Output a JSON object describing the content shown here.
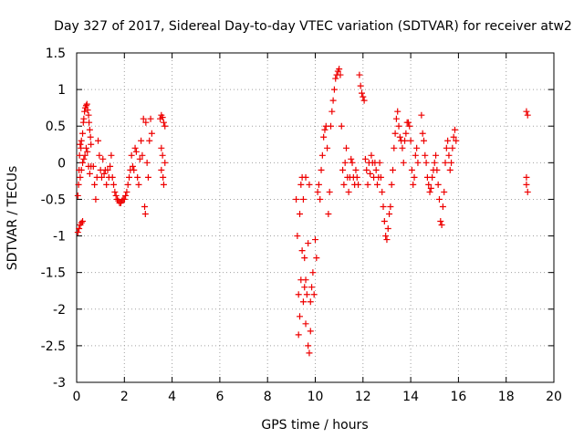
{
  "chart_data": {
    "type": "scatter",
    "title": "Day 327 of 2017, Sidereal Day-to-day VTEC variation (SDTVAR) for receiver atw2",
    "xlabel": "GPS time / hours",
    "ylabel": "SDTVAR / TECUs",
    "xlim": [
      0,
      20
    ],
    "ylim": [
      -3,
      1.5
    ],
    "grid": true,
    "marker": "+",
    "marker_color": "#ee0000",
    "xticks": [
      0,
      2,
      4,
      6,
      8,
      10,
      12,
      14,
      16,
      18,
      20
    ],
    "xtick_labels": [
      "0",
      "2",
      "4",
      "6",
      "8",
      "10",
      "12",
      "14",
      "16",
      "18",
      "20"
    ],
    "yticks": [
      -3,
      -2.5,
      -2,
      -1.5,
      -1,
      -0.5,
      0,
      0.5,
      1,
      1.5
    ],
    "ytick_labels": [
      "-3",
      "-2.5",
      "-2",
      "-1.5",
      "-1",
      "-0.5",
      "0",
      "0.5",
      "1",
      "1.5"
    ],
    "series": [
      {
        "name": "SDTVAR",
        "points": [
          [
            0.05,
            -0.95
          ],
          [
            0.1,
            -0.9
          ],
          [
            0.15,
            -0.85
          ],
          [
            0.2,
            -0.82
          ],
          [
            0.25,
            -0.8
          ],
          [
            0.05,
            -0.45
          ],
          [
            0.08,
            -0.3
          ],
          [
            0.1,
            -0.1
          ],
          [
            0.12,
            0.1
          ],
          [
            0.15,
            0.25
          ],
          [
            0.18,
            0.2
          ],
          [
            0.2,
            0.3
          ],
          [
            0.25,
            0.4
          ],
          [
            0.28,
            0.55
          ],
          [
            0.3,
            0.6
          ],
          [
            0.33,
            0.7
          ],
          [
            0.36,
            0.75
          ],
          [
            0.4,
            0.78
          ],
          [
            0.43,
            0.8
          ],
          [
            0.46,
            0.72
          ],
          [
            0.5,
            0.65
          ],
          [
            0.52,
            0.55
          ],
          [
            0.55,
            0.45
          ],
          [
            0.58,
            0.35
          ],
          [
            0.6,
            0.25
          ],
          [
            0.15,
            -0.2
          ],
          [
            0.2,
            -0.1
          ],
          [
            0.25,
            0.0
          ],
          [
            0.3,
            0.05
          ],
          [
            0.35,
            0.1
          ],
          [
            0.4,
            0.2
          ],
          [
            0.45,
            0.15
          ],
          [
            0.5,
            -0.05
          ],
          [
            0.55,
            -0.15
          ],
          [
            0.6,
            -0.05
          ],
          [
            0.7,
            -0.05
          ],
          [
            0.75,
            -0.3
          ],
          [
            0.8,
            -0.5
          ],
          [
            0.85,
            -0.2
          ],
          [
            0.9,
            0.3
          ],
          [
            0.95,
            0.1
          ],
          [
            1.0,
            -0.1
          ],
          [
            1.05,
            -0.2
          ],
          [
            1.1,
            0.05
          ],
          [
            1.15,
            -0.15
          ],
          [
            1.2,
            -0.1
          ],
          [
            1.25,
            -0.3
          ],
          [
            1.3,
            -0.1
          ],
          [
            1.35,
            -0.2
          ],
          [
            1.4,
            -0.05
          ],
          [
            1.45,
            0.1
          ],
          [
            1.5,
            -0.2
          ],
          [
            1.55,
            -0.3
          ],
          [
            1.6,
            -0.4
          ],
          [
            1.65,
            -0.45
          ],
          [
            1.7,
            -0.5
          ],
          [
            1.75,
            -0.52
          ],
          [
            1.8,
            -0.55
          ],
          [
            1.85,
            -0.55
          ],
          [
            1.9,
            -0.52
          ],
          [
            1.95,
            -0.5
          ],
          [
            2.0,
            -0.5
          ],
          [
            2.05,
            -0.45
          ],
          [
            2.1,
            -0.4
          ],
          [
            2.15,
            -0.3
          ],
          [
            2.2,
            -0.2
          ],
          [
            2.25,
            -0.1
          ],
          [
            2.3,
            0.1
          ],
          [
            2.35,
            -0.05
          ],
          [
            2.4,
            -0.1
          ],
          [
            2.45,
            0.2
          ],
          [
            2.5,
            0.15
          ],
          [
            2.55,
            -0.2
          ],
          [
            2.6,
            -0.3
          ],
          [
            2.65,
            0.05
          ],
          [
            2.7,
            0.3
          ],
          [
            2.75,
            0.1
          ],
          [
            2.8,
            0.6
          ],
          [
            2.85,
            -0.6
          ],
          [
            2.88,
            -0.7
          ],
          [
            2.9,
            0.55
          ],
          [
            2.95,
            0.0
          ],
          [
            3.0,
            -0.2
          ],
          [
            3.05,
            0.3
          ],
          [
            3.1,
            0.6
          ],
          [
            3.15,
            0.4
          ],
          [
            3.5,
            0.6
          ],
          [
            3.55,
            0.65
          ],
          [
            3.6,
            0.62
          ],
          [
            3.65,
            0.55
          ],
          [
            3.7,
            0.5
          ],
          [
            3.55,
            -0.1
          ],
          [
            3.6,
            0.1
          ],
          [
            3.65,
            -0.3
          ],
          [
            3.7,
            0.0
          ],
          [
            3.55,
            0.2
          ],
          [
            3.62,
            -0.2
          ],
          [
            9.2,
            -0.5
          ],
          [
            9.25,
            -1.0
          ],
          [
            9.3,
            -1.8
          ],
          [
            9.35,
            -2.1
          ],
          [
            9.4,
            -1.6
          ],
          [
            9.45,
            -1.2
          ],
          [
            9.5,
            -1.9
          ],
          [
            9.55,
            -1.7
          ],
          [
            9.6,
            -2.2
          ],
          [
            9.65,
            -1.8
          ],
          [
            9.7,
            -2.5
          ],
          [
            9.75,
            -2.6
          ],
          [
            9.8,
            -2.3
          ],
          [
            9.85,
            -1.7
          ],
          [
            9.9,
            -1.5
          ],
          [
            9.95,
            -1.8
          ],
          [
            9.3,
            -2.35
          ],
          [
            9.35,
            -0.7
          ],
          [
            9.4,
            -0.3
          ],
          [
            9.45,
            -0.2
          ],
          [
            9.5,
            -0.5
          ],
          [
            9.55,
            -1.3
          ],
          [
            9.6,
            -1.6
          ],
          [
            9.7,
            -1.1
          ],
          [
            9.8,
            -1.9
          ],
          [
            9.6,
            -0.2
          ],
          [
            9.75,
            -0.3
          ],
          [
            10.0,
            -1.05
          ],
          [
            10.05,
            -1.3
          ],
          [
            10.1,
            -0.4
          ],
          [
            10.15,
            -0.3
          ],
          [
            10.2,
            -0.5
          ],
          [
            10.25,
            -0.1
          ],
          [
            10.3,
            0.1
          ],
          [
            10.35,
            0.35
          ],
          [
            10.4,
            0.45
          ],
          [
            10.45,
            0.5
          ],
          [
            10.5,
            0.2
          ],
          [
            10.55,
            -0.7
          ],
          [
            10.6,
            -0.4
          ],
          [
            10.65,
            0.5
          ],
          [
            10.7,
            0.7
          ],
          [
            10.75,
            0.85
          ],
          [
            10.8,
            1.0
          ],
          [
            10.85,
            1.15
          ],
          [
            10.9,
            1.2
          ],
          [
            10.95,
            1.25
          ],
          [
            11.0,
            1.28
          ],
          [
            11.05,
            1.2
          ],
          [
            11.1,
            0.5
          ],
          [
            11.15,
            -0.1
          ],
          [
            11.2,
            -0.3
          ],
          [
            11.25,
            0.0
          ],
          [
            11.3,
            0.2
          ],
          [
            11.35,
            -0.2
          ],
          [
            11.4,
            -0.4
          ],
          [
            11.45,
            -0.2
          ],
          [
            11.5,
            0.05
          ],
          [
            11.55,
            0.0
          ],
          [
            11.6,
            -0.2
          ],
          [
            11.65,
            -0.3
          ],
          [
            11.7,
            -0.1
          ],
          [
            11.75,
            -0.2
          ],
          [
            11.8,
            -0.3
          ],
          [
            11.85,
            1.2
          ],
          [
            11.9,
            1.05
          ],
          [
            11.95,
            0.95
          ],
          [
            12.0,
            0.9
          ],
          [
            12.05,
            0.85
          ],
          [
            12.1,
            0.05
          ],
          [
            12.15,
            -0.1
          ],
          [
            12.2,
            -0.3
          ],
          [
            12.25,
            0.0
          ],
          [
            12.3,
            -0.15
          ],
          [
            12.35,
            0.1
          ],
          [
            12.4,
            0.0
          ],
          [
            12.45,
            -0.2
          ],
          [
            12.5,
            0.0
          ],
          [
            12.55,
            -0.1
          ],
          [
            12.6,
            -0.3
          ],
          [
            12.65,
            -0.2
          ],
          [
            12.7,
            0.0
          ],
          [
            12.75,
            -0.2
          ],
          [
            12.8,
            -0.4
          ],
          [
            12.85,
            -0.6
          ],
          [
            12.9,
            -0.8
          ],
          [
            12.95,
            -1.0
          ],
          [
            13.0,
            -1.05
          ],
          [
            13.05,
            -0.9
          ],
          [
            13.1,
            -0.7
          ],
          [
            13.15,
            -0.6
          ],
          [
            13.2,
            -0.3
          ],
          [
            13.25,
            -0.1
          ],
          [
            13.3,
            0.2
          ],
          [
            13.35,
            0.4
          ],
          [
            13.4,
            0.6
          ],
          [
            13.45,
            0.7
          ],
          [
            13.5,
            0.5
          ],
          [
            13.55,
            0.35
          ],
          [
            13.6,
            0.3
          ],
          [
            13.65,
            0.2
          ],
          [
            13.7,
            0.0
          ],
          [
            13.75,
            0.3
          ],
          [
            13.8,
            0.4
          ],
          [
            13.85,
            0.55
          ],
          [
            13.9,
            0.55
          ],
          [
            13.95,
            0.5
          ],
          [
            14.0,
            0.3
          ],
          [
            14.05,
            -0.1
          ],
          [
            14.1,
            -0.3
          ],
          [
            14.15,
            -0.2
          ],
          [
            14.2,
            0.1
          ],
          [
            14.25,
            0.2
          ],
          [
            14.3,
            0.0
          ],
          [
            14.45,
            0.65
          ],
          [
            14.5,
            0.4
          ],
          [
            14.55,
            0.3
          ],
          [
            14.6,
            0.1
          ],
          [
            14.65,
            0.0
          ],
          [
            14.7,
            -0.2
          ],
          [
            14.75,
            -0.3
          ],
          [
            14.8,
            -0.4
          ],
          [
            14.85,
            -0.35
          ],
          [
            14.9,
            -0.2
          ],
          [
            14.95,
            -0.1
          ],
          [
            15.0,
            0.0
          ],
          [
            15.05,
            0.1
          ],
          [
            15.1,
            -0.1
          ],
          [
            15.15,
            -0.3
          ],
          [
            15.2,
            -0.5
          ],
          [
            15.25,
            -0.8
          ],
          [
            15.3,
            -0.85
          ],
          [
            15.35,
            -0.6
          ],
          [
            15.4,
            -0.4
          ],
          [
            15.45,
            0.0
          ],
          [
            15.5,
            0.2
          ],
          [
            15.55,
            0.3
          ],
          [
            15.6,
            0.1
          ],
          [
            15.65,
            -0.1
          ],
          [
            15.7,
            0.0
          ],
          [
            15.75,
            0.2
          ],
          [
            15.8,
            0.35
          ],
          [
            15.85,
            0.45
          ],
          [
            15.9,
            0.3
          ],
          [
            18.85,
            0.7
          ],
          [
            18.9,
            0.65
          ],
          [
            18.85,
            -0.2
          ],
          [
            18.9,
            -0.4
          ],
          [
            18.85,
            -0.3
          ]
        ]
      }
    ]
  }
}
